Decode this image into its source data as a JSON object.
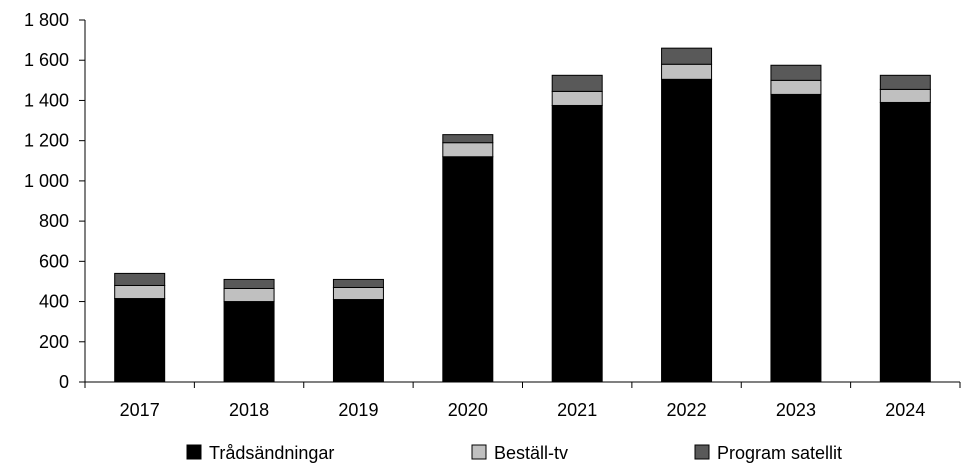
{
  "chart_data": {
    "type": "bar",
    "stacked": true,
    "categories": [
      "2017",
      "2018",
      "2019",
      "2020",
      "2021",
      "2022",
      "2023",
      "2024"
    ],
    "series": [
      {
        "name": "Trådsändningar",
        "values": [
          415,
          400,
          410,
          1120,
          1375,
          1505,
          1430,
          1390
        ],
        "color": "#000000"
      },
      {
        "name": "Beställ-tv",
        "values": [
          65,
          65,
          60,
          70,
          70,
          75,
          70,
          65
        ],
        "color": "#c0c0c0"
      },
      {
        "name": "Program satellit",
        "values": [
          60,
          45,
          40,
          40,
          80,
          80,
          75,
          70
        ],
        "color": "#595959"
      }
    ],
    "ylim": [
      0,
      1800
    ],
    "yticks": [
      0,
      200,
      400,
      600,
      800,
      1000,
      1200,
      1400,
      1600,
      1800
    ],
    "ytick_labels": [
      "0",
      "200",
      "400",
      "600",
      "800",
      "1 000",
      "1 200",
      "1 400",
      "1 600",
      "1 800"
    ],
    "grid": false,
    "legend_position": "bottom",
    "title": "",
    "xlabel": "",
    "ylabel": ""
  }
}
